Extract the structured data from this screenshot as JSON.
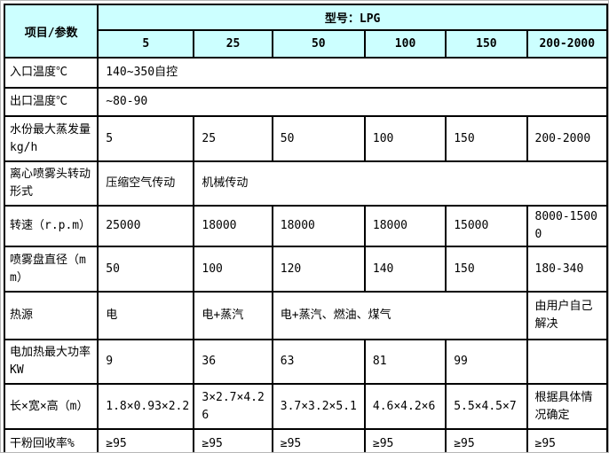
{
  "colors": {
    "header_bg": "#ccffff",
    "grid_border": "#000000",
    "frame_border": "#b7b7b7",
    "cell_bg": "#ffffff",
    "text": "#000000"
  },
  "table": {
    "corner_label": "项目/参数",
    "model_header": "型号：LPG",
    "columns": [
      "5",
      "25",
      "50",
      "100",
      "150",
      "200-2000"
    ],
    "rows": [
      {
        "label": "入口温度℃",
        "cells": [
          {
            "t": "140~350自控",
            "cs": 6
          }
        ]
      },
      {
        "label": "出口温度℃",
        "cells": [
          {
            "t": "~80-90",
            "cs": 6
          }
        ]
      },
      {
        "label": "水份最大蒸发量kg/h",
        "cells": [
          {
            "t": "5"
          },
          {
            "t": "25"
          },
          {
            "t": "50"
          },
          {
            "t": "100"
          },
          {
            "t": "150"
          },
          {
            "t": "200-2000"
          }
        ]
      },
      {
        "label": "离心喷雾头转动形式",
        "cells": [
          {
            "t": "压缩空气传动"
          },
          {
            "t": "机械传动",
            "cs": 5
          }
        ]
      },
      {
        "label": "转速（r.p.m）",
        "cells": [
          {
            "t": "25000"
          },
          {
            "t": "18000"
          },
          {
            "t": "18000"
          },
          {
            "t": "18000"
          },
          {
            "t": "15000"
          },
          {
            "t": "8000-15000"
          }
        ]
      },
      {
        "label": "喷雾盘直径（mm）",
        "cells": [
          {
            "t": "50"
          },
          {
            "t": "100"
          },
          {
            "t": "120"
          },
          {
            "t": "140"
          },
          {
            "t": "150"
          },
          {
            "t": "180-340"
          }
        ]
      },
      {
        "label": "热源",
        "cells": [
          {
            "t": "电"
          },
          {
            "t": "电+蒸汽"
          },
          {
            "t": "电+蒸汽、燃油、煤气",
            "cs": 3
          },
          {
            "t": "由用户自己解决"
          }
        ]
      },
      {
        "label": "电加热最大功率KW",
        "cells": [
          {
            "t": "9"
          },
          {
            "t": "36"
          },
          {
            "t": "63"
          },
          {
            "t": "81"
          },
          {
            "t": "99"
          },
          {
            "t": ""
          }
        ]
      },
      {
        "label": "长×宽×高（m）",
        "cells": [
          {
            "t": "1.8×0.93×2.2"
          },
          {
            "t": "3×2.7×4.26"
          },
          {
            "t": "3.7×3.2×5.1"
          },
          {
            "t": "4.6×4.2×6"
          },
          {
            "t": "5.5×4.5×7"
          },
          {
            "t": "根据具体情况确定"
          }
        ]
      },
      {
        "label": "干粉回收率%",
        "cells": [
          {
            "t": "≥95"
          },
          {
            "t": "≥95"
          },
          {
            "t": "≥95"
          },
          {
            "t": "≥95"
          },
          {
            "t": "≥95"
          },
          {
            "t": "≥95"
          }
        ]
      }
    ]
  }
}
